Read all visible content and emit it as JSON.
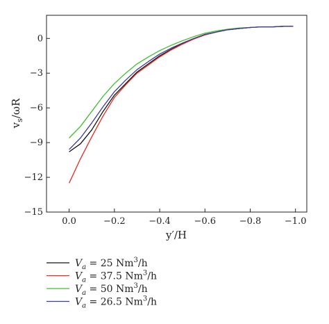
{
  "chart_data": {
    "type": "line",
    "xlabel": "y′/H",
    "ylabel": "v_s/ωR",
    "xlim": [
      0.1,
      -1.05
    ],
    "ylim": [
      -15,
      2
    ],
    "x_ticks": [
      0.0,
      -0.2,
      -0.4,
      -0.6,
      -0.8,
      -1.0
    ],
    "x_tick_labels": [
      "0.0",
      "−0.2",
      "−0.4",
      "−0.6",
      "−0.8",
      "−1.0"
    ],
    "y_ticks": [
      0,
      -3,
      -6,
      -9,
      -12,
      -15
    ],
    "y_tick_labels": [
      "0",
      "−3",
      "−6",
      "−9",
      "−12",
      "−15"
    ],
    "grid": false,
    "legend_position": "below",
    "series": [
      {
        "name": "25 Nm³/h",
        "legend": {
          "var": "V",
          "sub": "a",
          "rest": " = 25 Nm",
          "sup": "3",
          "tail": "/h"
        },
        "color": "#111111",
        "x": [
          0.0,
          -0.05,
          -0.1,
          -0.15,
          -0.2,
          -0.25,
          -0.3,
          -0.35,
          -0.4,
          -0.45,
          -0.5,
          -0.55,
          -0.6,
          -0.65,
          -0.7,
          -0.75,
          -0.8,
          -0.85,
          -0.9,
          -0.95,
          -0.99
        ],
        "y": [
          -9.8,
          -9.1,
          -7.9,
          -6.3,
          -4.9,
          -3.9,
          -2.9,
          -2.2,
          -1.5,
          -0.95,
          -0.45,
          -0.05,
          0.35,
          0.55,
          0.75,
          0.85,
          0.95,
          1.0,
          1.0,
          1.05,
          1.05
        ]
      },
      {
        "name": "37.5 Nm³/h",
        "legend": {
          "var": "V",
          "sub": "a",
          "rest": " = 37.5 Nm",
          "sup": "3",
          "tail": "/h"
        },
        "color": "#e8281e",
        "x": [
          0.0,
          -0.05,
          -0.1,
          -0.15,
          -0.2,
          -0.25,
          -0.3,
          -0.35,
          -0.4,
          -0.45,
          -0.5,
          -0.55,
          -0.6,
          -0.65,
          -0.7,
          -0.75,
          -0.8,
          -0.85,
          -0.9,
          -0.95,
          -0.99
        ],
        "y": [
          -12.5,
          -10.4,
          -8.5,
          -6.7,
          -5.1,
          -4.0,
          -3.0,
          -2.3,
          -1.6,
          -1.0,
          -0.5,
          -0.05,
          0.3,
          0.55,
          0.75,
          0.85,
          0.95,
          1.0,
          1.0,
          1.05,
          1.05
        ]
      },
      {
        "name": "50 Nm³/h",
        "legend": {
          "var": "V",
          "sub": "a",
          "rest": " = 50 Nm",
          "sup": "3",
          "tail": "/h"
        },
        "color": "#3cbf2a",
        "x": [
          0.0,
          -0.05,
          -0.1,
          -0.15,
          -0.2,
          -0.25,
          -0.3,
          -0.35,
          -0.4,
          -0.45,
          -0.5,
          -0.55,
          -0.6,
          -0.65,
          -0.7,
          -0.75,
          -0.8,
          -0.85,
          -0.9,
          -0.95,
          -0.99
        ],
        "y": [
          -8.6,
          -7.6,
          -6.3,
          -5.0,
          -3.9,
          -3.0,
          -2.2,
          -1.6,
          -1.05,
          -0.6,
          -0.2,
          0.15,
          0.45,
          0.65,
          0.8,
          0.9,
          0.95,
          1.0,
          1.0,
          1.05,
          1.05
        ]
      },
      {
        "name": "26.5 Nm³/h",
        "legend": {
          "var": "V",
          "sub": "a",
          "rest": " = 26.5 Nm",
          "sup": "3",
          "tail": "/h"
        },
        "color": "#3a3a9a",
        "x": [
          0.0,
          -0.05,
          -0.1,
          -0.15,
          -0.2,
          -0.25,
          -0.3,
          -0.35,
          -0.4,
          -0.45,
          -0.5,
          -0.55,
          -0.6,
          -0.65,
          -0.7,
          -0.75,
          -0.8,
          -0.85,
          -0.9,
          -0.95,
          -0.99
        ],
        "y": [
          -9.6,
          -8.6,
          -7.3,
          -5.9,
          -4.6,
          -3.6,
          -2.7,
          -2.0,
          -1.35,
          -0.85,
          -0.4,
          0.0,
          0.35,
          0.55,
          0.75,
          0.85,
          0.95,
          1.0,
          1.0,
          1.05,
          1.05
        ]
      }
    ]
  }
}
